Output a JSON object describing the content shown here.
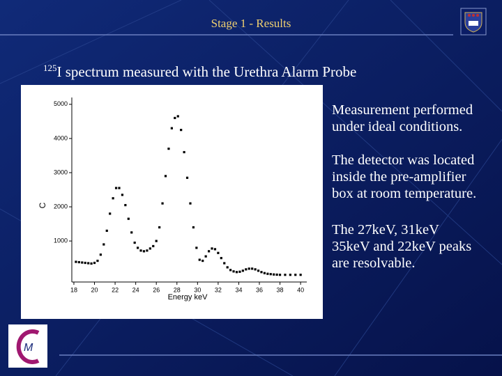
{
  "header": {
    "title": "Stage 1 - Results"
  },
  "heading": {
    "superscript": "125",
    "text": "I spectrum measured with the Urethra Alarm Probe"
  },
  "paragraphs": [
    [
      "Measurement performed",
      "under ideal conditions."
    ],
    [
      "The detector was located",
      "inside the pre-amplifier",
      "box at room temperature."
    ],
    [
      "The 27keV, 31keV",
      "35keV and 22keV peaks",
      "are resolvable."
    ]
  ],
  "chart_data": {
    "type": "scatter",
    "xlabel": "Energy keV",
    "ylabel": "C",
    "color": "#000000",
    "xlim": [
      17.8,
      40.6
    ],
    "xticks": [
      18,
      20,
      22,
      24,
      26,
      28,
      30,
      32,
      34,
      36,
      38,
      40
    ],
    "ylim": [
      -200,
      5200
    ],
    "yticks": [
      1000,
      2000,
      3000,
      4000,
      5000
    ],
    "x": [
      18.2,
      18.5,
      18.8,
      19.1,
      19.4,
      19.7,
      20,
      20.3,
      20.6,
      20.9,
      21.2,
      21.5,
      21.8,
      22.1,
      22.4,
      22.7,
      23,
      23.3,
      23.6,
      23.9,
      24.2,
      24.5,
      24.8,
      25.1,
      25.4,
      25.7,
      26,
      26.3,
      26.6,
      26.9,
      27.2,
      27.5,
      27.8,
      28.1,
      28.4,
      28.7,
      29,
      29.3,
      29.6,
      29.9,
      30.2,
      30.5,
      30.8,
      31.1,
      31.4,
      31.7,
      32,
      32.3,
      32.6,
      32.9,
      33.2,
      33.5,
      33.8,
      34.1,
      34.4,
      34.7,
      35,
      35.3,
      35.6,
      35.9,
      36.2,
      36.5,
      36.8,
      37.1,
      37.4,
      37.7,
      38,
      38.5,
      39,
      39.5,
      40
    ],
    "values": [
      390,
      380,
      370,
      360,
      350,
      340,
      360,
      420,
      600,
      900,
      1300,
      1800,
      2250,
      2550,
      2550,
      2350,
      2050,
      1650,
      1250,
      950,
      800,
      720,
      700,
      720,
      780,
      850,
      1000,
      1400,
      2100,
      2900,
      3700,
      4300,
      4600,
      4650,
      4250,
      3600,
      2850,
      2100,
      1400,
      800,
      450,
      420,
      550,
      700,
      780,
      760,
      650,
      500,
      350,
      230,
      150,
      110,
      90,
      100,
      130,
      170,
      190,
      190,
      170,
      130,
      90,
      60,
      40,
      30,
      20,
      15,
      10,
      10,
      10,
      10,
      10
    ]
  }
}
